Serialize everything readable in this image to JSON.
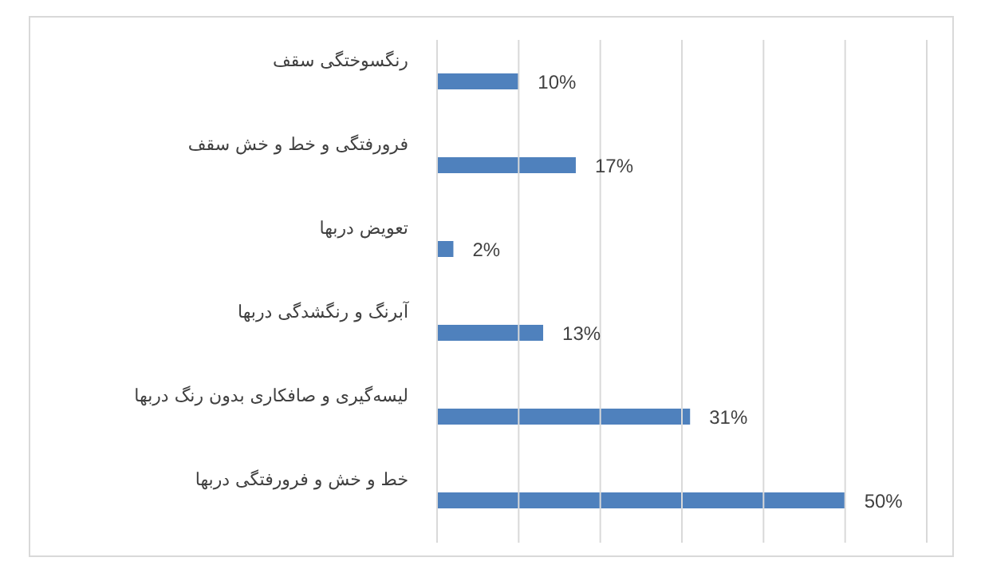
{
  "chart_data": {
    "type": "bar",
    "orientation": "horizontal",
    "categories": [
      "رنگسوختگی سقف",
      "فرورفتگی و  خط و خش سقف",
      "تعویض دربها",
      "آبرنگ و رنگشدگی دربها",
      "لیسه‌گیری و صافکاری بدون رنگ دربها",
      "خط و خش و فرورفتگی دربها"
    ],
    "values": [
      10,
      17,
      2,
      13,
      31,
      50
    ],
    "value_labels": [
      "10%",
      "17%",
      "2%",
      "13%",
      "31%",
      "50%"
    ],
    "color": "#4f81bd",
    "xlim": [
      0,
      60
    ],
    "xticks": [
      {
        "value": 0,
        "label": null
      },
      {
        "value": 10,
        "label": null
      },
      {
        "value": 20,
        "label": null
      },
      {
        "value": 30,
        "label": null
      },
      {
        "value": 40,
        "label": null
      },
      {
        "value": 50,
        "label": null
      },
      {
        "value": 60,
        "label": null
      }
    ],
    "grid": "x",
    "tick_labels": "y",
    "legend": false
  }
}
